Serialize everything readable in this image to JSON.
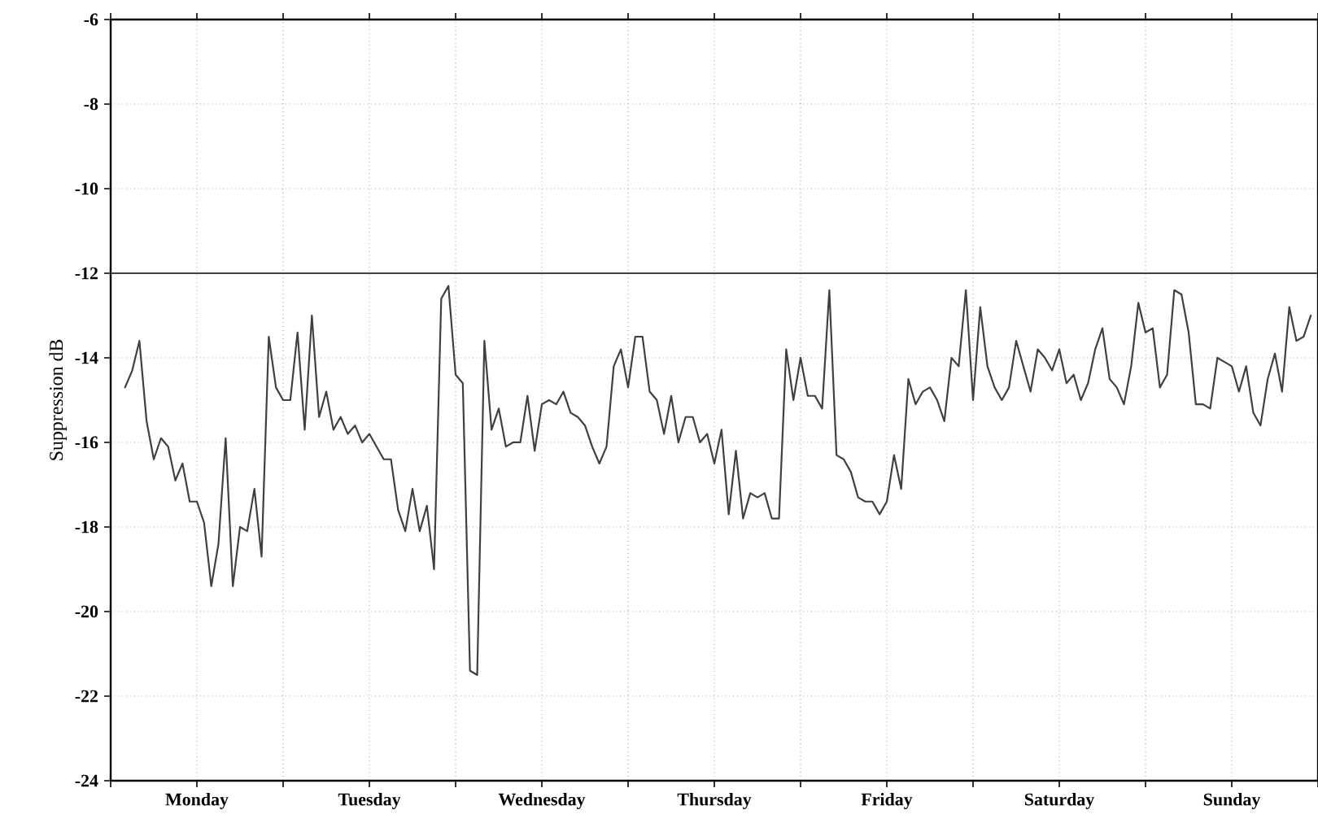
{
  "chart_data": {
    "type": "line",
    "ylabel": "Suppression dB",
    "categories": [
      null,
      null,
      null,
      null,
      null,
      null,
      null,
      null,
      null,
      null,
      "Monday",
      null,
      null,
      null,
      null,
      null,
      null,
      null,
      null,
      null,
      null,
      null,
      null,
      null,
      null,
      null,
      null,
      null,
      null,
      null,
      null,
      null,
      null,
      null,
      "Tuesday",
      null,
      null,
      null,
      null,
      null,
      null,
      null,
      null,
      null,
      null,
      null,
      null,
      null,
      null,
      null,
      null,
      null,
      null,
      null,
      null,
      null,
      null,
      null,
      "Wednesday",
      null,
      null,
      null,
      null,
      null,
      null,
      null,
      null,
      null,
      null,
      null,
      null,
      null,
      null,
      null,
      null,
      null,
      null,
      null,
      null,
      null,
      null,
      null,
      "Thursday",
      null,
      null,
      null,
      null,
      null,
      null,
      null,
      null,
      null,
      null,
      null,
      null,
      null,
      null,
      null,
      null,
      null,
      null,
      null,
      null,
      null,
      null,
      null,
      "Friday",
      null,
      null,
      null,
      null,
      null,
      null,
      null,
      null,
      null,
      null,
      null,
      null,
      null,
      null,
      null,
      null,
      null,
      null,
      null,
      null,
      null,
      null,
      null,
      "Saturday",
      null,
      null,
      null,
      null,
      null,
      null,
      null,
      null,
      null,
      null,
      null,
      null,
      null,
      null,
      null,
      null,
      null,
      null,
      null,
      null,
      null,
      null,
      null,
      "Sunday",
      null,
      null,
      null,
      null,
      null,
      null,
      null,
      null,
      null,
      null,
      null
    ],
    "series": [
      {
        "color": "#404040",
        "values": [
          -14.7,
          -14.3,
          -13.6,
          -15.5,
          -16.4,
          -15.9,
          -16.1,
          -16.9,
          -16.5,
          -17.4,
          -17.4,
          -17.9,
          -19.4,
          -18.4,
          -15.9,
          -19.4,
          -18.0,
          -18.1,
          -17.1,
          -18.7,
          -13.5,
          -14.7,
          -15.0,
          -15.0,
          -13.4,
          -15.7,
          -13.0,
          -15.4,
          -14.8,
          -15.7,
          -15.4,
          -15.8,
          -15.6,
          -16.0,
          -15.8,
          -16.1,
          -16.4,
          -16.4,
          -17.6,
          -18.1,
          -17.1,
          -18.1,
          -17.5,
          -19.0,
          -12.6,
          -12.3,
          -14.4,
          -14.6,
          -21.4,
          -21.5,
          -13.6,
          -15.7,
          -15.2,
          -16.1,
          -16.0,
          -16.0,
          -14.9,
          -16.2,
          -15.1,
          -15.0,
          -15.1,
          -14.8,
          -15.3,
          -15.4,
          -15.6,
          -16.1,
          -16.5,
          -16.1,
          -14.2,
          -13.8,
          -14.7,
          -13.5,
          -13.5,
          -14.8,
          -15.0,
          -15.8,
          -14.9,
          -16.0,
          -15.4,
          -15.4,
          -16.0,
          -15.8,
          -16.5,
          -15.7,
          -17.7,
          -16.2,
          -17.8,
          -17.2,
          -17.3,
          -17.2,
          -17.8,
          -17.8,
          -13.8,
          -15.0,
          -14.0,
          -14.9,
          -14.9,
          -15.2,
          -12.4,
          -16.3,
          -16.4,
          -16.7,
          -17.3,
          -17.4,
          -17.4,
          -17.7,
          -17.4,
          -16.3,
          -17.1,
          -14.5,
          -15.1,
          -14.8,
          -14.7,
          -15.0,
          -15.5,
          -14.0,
          -14.2,
          -12.4,
          -15.0,
          -12.8,
          -14.2,
          -14.7,
          -15.0,
          -14.7,
          -13.6,
          -14.2,
          -14.8,
          -13.8,
          -14.0,
          -14.3,
          -13.8,
          -14.6,
          -14.4,
          -15.0,
          -14.6,
          -13.8,
          -13.3,
          -14.5,
          -14.7,
          -15.1,
          -14.2,
          -12.7,
          -13.4,
          -13.3,
          -14.7,
          -14.4,
          -12.4,
          -12.5,
          -13.4,
          -15.1,
          -15.1,
          -15.2,
          -14.0,
          -14.1,
          -14.2,
          -14.8,
          -14.2,
          -15.3,
          -15.6,
          -14.5,
          -13.9,
          -14.8,
          -12.8,
          -13.6,
          -13.5,
          -13.0
        ]
      }
    ],
    "ylim": [
      -24,
      -6
    ],
    "yticks": [
      -24,
      -22,
      -20,
      -18,
      -16,
      -14,
      -12,
      -10,
      -8,
      -6
    ],
    "grid": true,
    "ref_lines": [
      {
        "axis": "y",
        "value": -12,
        "color": "#404040"
      }
    ],
    "marker": "none",
    "line_style": "solid"
  }
}
